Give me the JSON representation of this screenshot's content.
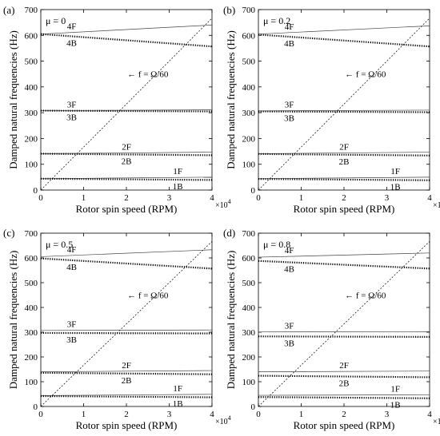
{
  "figure": {
    "common": {
      "xlabel": "Rotor spin speed (RPM)",
      "ylabel": "Damped natural frequencies (Hz)",
      "x_multiplier": "×10",
      "x_exponent": "4",
      "annotation": "← f = Ω/60"
    }
  },
  "chart_data": [
    {
      "type": "line",
      "panel": "(a)",
      "mu_label": "μ = 0",
      "xlabel": "Rotor spin speed (RPM)",
      "ylabel": "Damped natural frequencies (Hz)",
      "xlim": [
        0,
        40000
      ],
      "ylim": [
        0,
        700
      ],
      "xticks": [
        0,
        1,
        2,
        3,
        4
      ],
      "yticks": [
        0,
        100,
        200,
        300,
        400,
        500,
        600,
        700
      ],
      "grid": false,
      "series": [
        {
          "name": "4F",
          "style": "solid",
          "x": [
            0,
            40000
          ],
          "y": [
            605,
            640
          ]
        },
        {
          "name": "4B",
          "style": "dotted",
          "x": [
            0,
            40000
          ],
          "y": [
            605,
            557
          ]
        },
        {
          "name": "3F",
          "style": "solid",
          "x": [
            0,
            40000
          ],
          "y": [
            308,
            311
          ]
        },
        {
          "name": "3B",
          "style": "dotted",
          "x": [
            0,
            40000
          ],
          "y": [
            308,
            305
          ]
        },
        {
          "name": "2F",
          "style": "solid",
          "x": [
            0,
            40000
          ],
          "y": [
            141,
            147
          ]
        },
        {
          "name": "2B",
          "style": "dotted",
          "x": [
            0,
            40000
          ],
          "y": [
            141,
            135
          ]
        },
        {
          "name": "1F",
          "style": "solid",
          "x": [
            0,
            40000
          ],
          "y": [
            44,
            50
          ]
        },
        {
          "name": "1B",
          "style": "dotted",
          "x": [
            0,
            40000
          ],
          "y": [
            44,
            39
          ]
        },
        {
          "name": "f = Ω/60",
          "style": "dashed",
          "x": [
            0,
            40000
          ],
          "y": [
            0,
            666.7
          ]
        }
      ]
    },
    {
      "type": "line",
      "panel": "(b)",
      "mu_label": "μ = 0.2",
      "xlabel": "Rotor spin speed (RPM)",
      "ylabel": "Damped natural frequencies (Hz)",
      "xlim": [
        0,
        40000
      ],
      "ylim": [
        0,
        700
      ],
      "xticks": [
        0,
        1,
        2,
        3,
        4
      ],
      "yticks": [
        0,
        100,
        200,
        300,
        400,
        500,
        600,
        700
      ],
      "grid": false,
      "series": [
        {
          "name": "4F",
          "style": "solid",
          "x": [
            0,
            40000
          ],
          "y": [
            605,
            637
          ]
        },
        {
          "name": "4B",
          "style": "dotted",
          "x": [
            0,
            40000
          ],
          "y": [
            603,
            557
          ]
        },
        {
          "name": "3F",
          "style": "solid",
          "x": [
            0,
            40000
          ],
          "y": [
            307,
            310
          ]
        },
        {
          "name": "3B",
          "style": "dotted",
          "x": [
            0,
            40000
          ],
          "y": [
            305,
            302
          ]
        },
        {
          "name": "2F",
          "style": "solid",
          "x": [
            0,
            40000
          ],
          "y": [
            141,
            147
          ]
        },
        {
          "name": "2B",
          "style": "dotted",
          "x": [
            0,
            40000
          ],
          "y": [
            140,
            134
          ]
        },
        {
          "name": "1F",
          "style": "solid",
          "x": [
            0,
            40000
          ],
          "y": [
            44,
            50
          ]
        },
        {
          "name": "1B",
          "style": "dotted",
          "x": [
            0,
            40000
          ],
          "y": [
            43,
            38
          ]
        },
        {
          "name": "f = Ω/60",
          "style": "dashed",
          "x": [
            0,
            40000
          ],
          "y": [
            0,
            666.7
          ]
        }
      ]
    },
    {
      "type": "line",
      "panel": "(c)",
      "mu_label": "μ = 0.5",
      "xlabel": "Rotor spin speed (RPM)",
      "ylabel": "Damped natural frequencies (Hz)",
      "xlim": [
        0,
        40000
      ],
      "ylim": [
        0,
        700
      ],
      "xticks": [
        0,
        1,
        2,
        3,
        4
      ],
      "yticks": [
        0,
        100,
        200,
        300,
        400,
        500,
        600,
        700
      ],
      "grid": false,
      "series": [
        {
          "name": "4F",
          "style": "solid",
          "x": [
            0,
            40000
          ],
          "y": [
            605,
            633
          ]
        },
        {
          "name": "4B",
          "style": "dotted",
          "x": [
            0,
            40000
          ],
          "y": [
            598,
            557
          ]
        },
        {
          "name": "3F",
          "style": "solid",
          "x": [
            0,
            40000
          ],
          "y": [
            307,
            309
          ]
        },
        {
          "name": "3B",
          "style": "dotted",
          "x": [
            0,
            40000
          ],
          "y": [
            297,
            295
          ]
        },
        {
          "name": "2F",
          "style": "solid",
          "x": [
            0,
            40000
          ],
          "y": [
            140,
            145
          ]
        },
        {
          "name": "2B",
          "style": "dotted",
          "x": [
            0,
            40000
          ],
          "y": [
            136,
            130
          ]
        },
        {
          "name": "1F",
          "style": "solid",
          "x": [
            0,
            40000
          ],
          "y": [
            44,
            49
          ]
        },
        {
          "name": "1B",
          "style": "dotted",
          "x": [
            0,
            40000
          ],
          "y": [
            42,
            37
          ]
        },
        {
          "name": "f = Ω/60",
          "style": "dashed",
          "x": [
            0,
            40000
          ],
          "y": [
            0,
            666.7
          ]
        }
      ]
    },
    {
      "type": "line",
      "panel": "(d)",
      "mu_label": "μ = 0.8",
      "xlabel": "Rotor spin speed (RPM)",
      "ylabel": "Damped natural frequencies (Hz)",
      "xlim": [
        0,
        40000
      ],
      "ylim": [
        0,
        700
      ],
      "xticks": [
        0,
        1,
        2,
        3,
        4
      ],
      "yticks": [
        0,
        100,
        200,
        300,
        400,
        500,
        600,
        700
      ],
      "grid": false,
      "series": [
        {
          "name": "4F",
          "style": "solid",
          "x": [
            0,
            40000
          ],
          "y": [
            603,
            620
          ]
        },
        {
          "name": "4B",
          "style": "dotted",
          "x": [
            0,
            40000
          ],
          "y": [
            588,
            557
          ]
        },
        {
          "name": "3F",
          "style": "solid",
          "x": [
            0,
            40000
          ],
          "y": [
            301,
            302
          ]
        },
        {
          "name": "3B",
          "style": "dotted",
          "x": [
            0,
            40000
          ],
          "y": [
            283,
            281
          ]
        },
        {
          "name": "2F",
          "style": "solid",
          "x": [
            0,
            40000
          ],
          "y": [
            140,
            143
          ]
        },
        {
          "name": "2B",
          "style": "dotted",
          "x": [
            0,
            40000
          ],
          "y": [
            124,
            118
          ]
        },
        {
          "name": "1F",
          "style": "solid",
          "x": [
            0,
            40000
          ],
          "y": [
            45,
            47
          ]
        },
        {
          "name": "1B",
          "style": "dotted",
          "x": [
            0,
            40000
          ],
          "y": [
            38,
            33
          ]
        },
        {
          "name": "f = Ω/60",
          "style": "dashed",
          "x": [
            0,
            40000
          ],
          "y": [
            0,
            666.7
          ]
        }
      ]
    }
  ]
}
